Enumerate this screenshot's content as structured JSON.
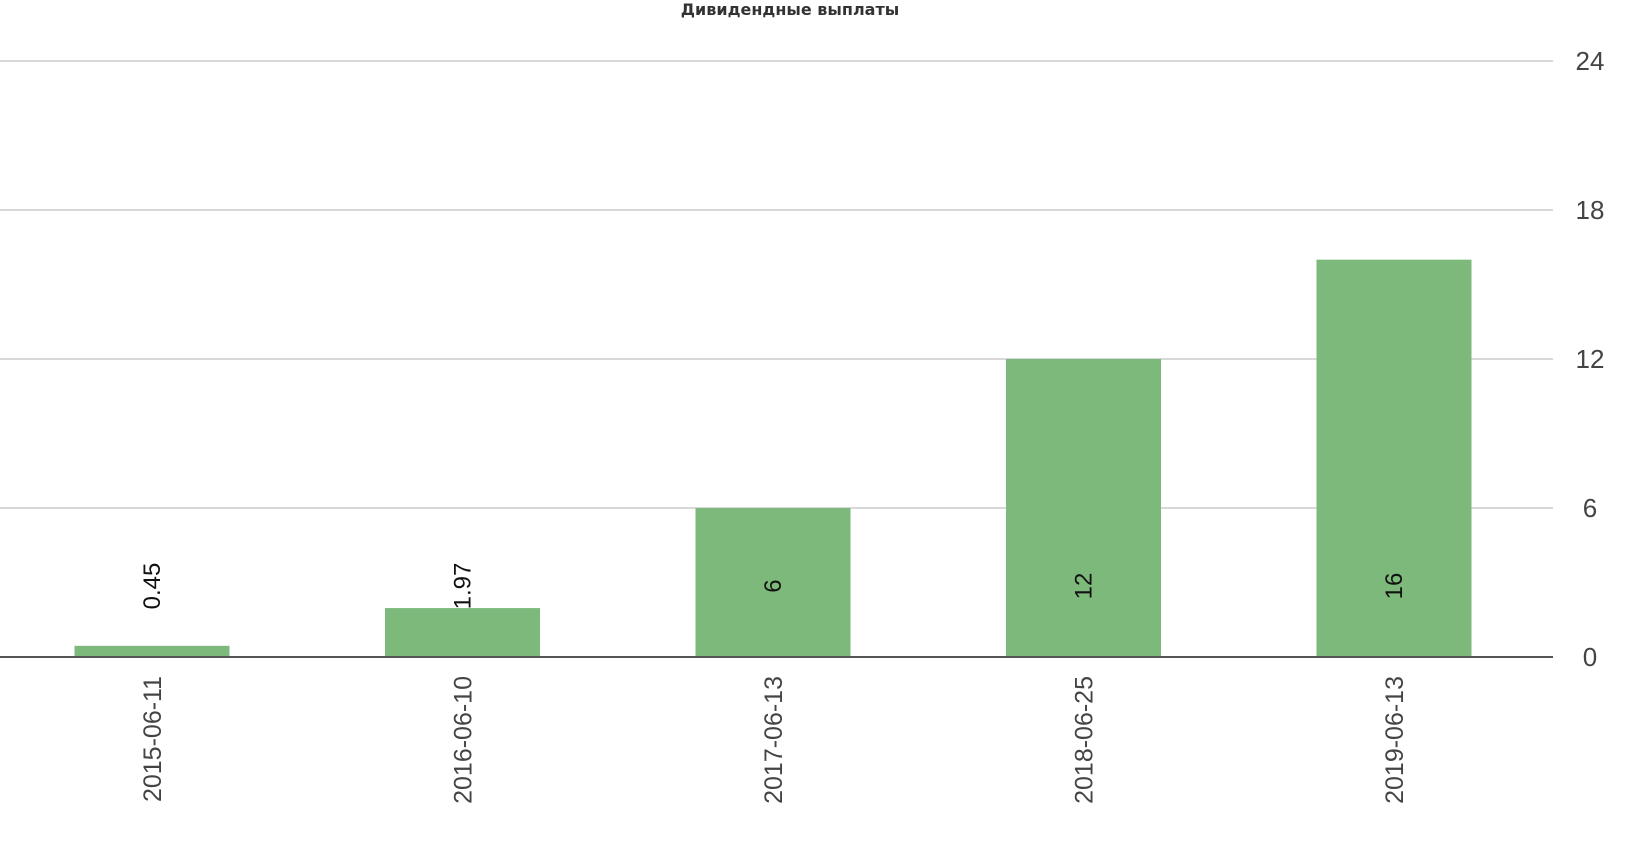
{
  "chart_data": {
    "type": "bar",
    "title": "Дивидендные выплаты",
    "categories": [
      "2015-06-11",
      "2016-06-10",
      "2017-06-13",
      "2018-06-25",
      "2019-06-13"
    ],
    "series": [
      {
        "values": [
          0.45,
          1.97,
          6,
          12,
          16
        ],
        "value_labels": [
          "0.45",
          "1.97",
          "6",
          "12",
          "16"
        ],
        "color": "#7cb97b"
      }
    ],
    "y_ticks": [
      "0",
      "6",
      "12",
      "18",
      "24"
    ],
    "ylim": [
      0,
      24
    ],
    "y_axis_position": "right",
    "grid": true,
    "legend": "none",
    "xlabel": "",
    "ylabel": ""
  }
}
